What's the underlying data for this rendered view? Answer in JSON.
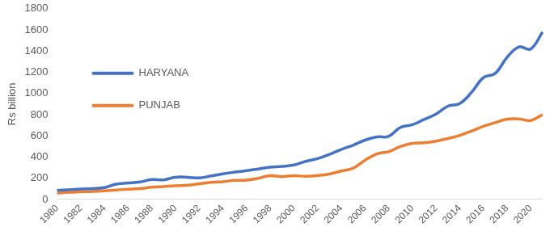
{
  "chart_data": {
    "type": "line",
    "y_label": "Rs billion",
    "categories": [
      "1980",
      null,
      "1982",
      null,
      "1984",
      null,
      "1986",
      null,
      "1988",
      null,
      "1990",
      null,
      "1992",
      null,
      "1994",
      null,
      "1996",
      null,
      "1998",
      null,
      "2000",
      null,
      "2002",
      null,
      "2004",
      null,
      "2006",
      null,
      "2008",
      null,
      "2010",
      null,
      "2012",
      null,
      "2014",
      null,
      "2016",
      null,
      "2018",
      null,
      "2020",
      null
    ],
    "series": [
      {
        "name": "HARYANA",
        "color": "#4472c4",
        "values": [
          85,
          92,
          98,
          103,
          112,
          145,
          155,
          165,
          188,
          185,
          210,
          210,
          203,
          222,
          242,
          258,
          272,
          288,
          305,
          312,
          325,
          360,
          385,
          425,
          472,
          512,
          560,
          590,
          595,
          680,
          705,
          755,
          805,
          880,
          905,
          1010,
          1150,
          1190,
          1340,
          1440,
          1420,
          1580
        ]
      },
      {
        "name": "PUNJAB",
        "color": "#ed7d31",
        "values": [
          60,
          68,
          72,
          76,
          82,
          90,
          96,
          102,
          115,
          122,
          130,
          135,
          148,
          162,
          168,
          180,
          182,
          200,
          225,
          215,
          225,
          218,
          225,
          240,
          268,
          295,
          370,
          430,
          450,
          500,
          530,
          535,
          550,
          575,
          605,
          645,
          690,
          725,
          758,
          760,
          745,
          800
        ]
      }
    ],
    "ylim": [
      0,
      1800
    ],
    "yticks": [
      0,
      200,
      400,
      600,
      800,
      1000,
      1200,
      1400,
      1600,
      1800
    ],
    "grid": false,
    "legend": "upper left"
  }
}
